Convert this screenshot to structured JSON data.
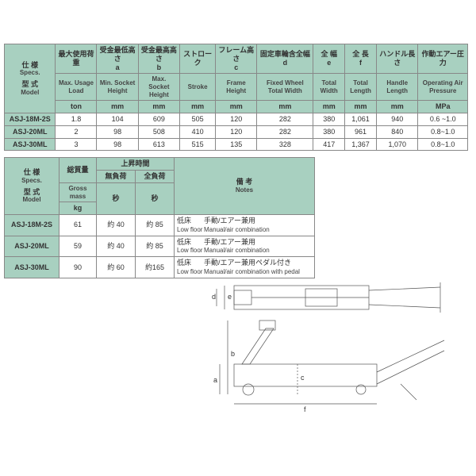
{
  "table1": {
    "corner_top": "仕 様",
    "corner_top_en": "Specs.",
    "corner_bottom": "型 式",
    "corner_bottom_en": "Model",
    "headers": [
      {
        "jp": "最大使用荷重",
        "en": "Max. Usage Load",
        "unit": "ton"
      },
      {
        "jp": "受金最低高さ",
        "letter": "a",
        "en": "Min. Socket Height",
        "unit": "mm"
      },
      {
        "jp": "受金最高高さ",
        "letter": "b",
        "en": "Max. Socket Height",
        "unit": "mm"
      },
      {
        "jp": "ストローク",
        "en": "Stroke",
        "unit": "mm"
      },
      {
        "jp": "フレーム高さ",
        "letter": "c",
        "en": "Frame Height",
        "unit": "mm"
      },
      {
        "jp": "固定車輪含全幅",
        "letter": "d",
        "en": "Fixed Wheel Total Width",
        "unit": "mm"
      },
      {
        "jp": "全 幅",
        "letter": "e",
        "en": "Total Width",
        "unit": "mm"
      },
      {
        "jp": "全 長",
        "letter": "f",
        "en": "Total Length",
        "unit": "mm"
      },
      {
        "jp": "ハンドル長さ",
        "en": "Handle Length",
        "unit": "mm"
      },
      {
        "jp": "作動エアー圧力",
        "en": "Operating Air Pressure",
        "unit": "MPa"
      }
    ],
    "rows": [
      {
        "model": "ASJ-18M-2S",
        "vals": [
          "1.8",
          "104",
          "609",
          "505",
          "120",
          "282",
          "380",
          "1,061",
          "940",
          "0.6 ~1.0"
        ]
      },
      {
        "model": "ASJ-20ML",
        "vals": [
          "2",
          "98",
          "508",
          "410",
          "120",
          "282",
          "380",
          "961",
          "840",
          "0.8~1.0"
        ]
      },
      {
        "model": "ASJ-30ML",
        "vals": [
          "3",
          "98",
          "613",
          "515",
          "135",
          "328",
          "417",
          "1,367",
          "1,070",
          "0.8~1.0"
        ]
      }
    ]
  },
  "table2": {
    "corner_top": "仕 様",
    "corner_top_en": "Specs.",
    "corner_bottom": "型 式",
    "corner_bottom_en": "Model",
    "mass_jp": "総質量",
    "mass_en": "Gross mass",
    "mass_unit": "kg",
    "lift_jp": "上昇時間",
    "noload_jp": "無負荷",
    "fullload_jp": "全負荷",
    "sec_unit": "秒",
    "notes_jp": "備 考",
    "notes_en": "Notes",
    "rows": [
      {
        "model": "ASJ-18M-2S",
        "mass": "61",
        "noload": "約 40",
        "full": "約 85",
        "note_jp": "低床",
        "note_en": "Low floor",
        "note2_jp": "手動/エアー兼用",
        "note2_en": "Manual/air combination"
      },
      {
        "model": "ASJ-20ML",
        "mass": "59",
        "noload": "約 40",
        "full": "約 85",
        "note_jp": "低床",
        "note_en": "Low floor",
        "note2_jp": "手動/エアー兼用",
        "note2_en": "Manual/air combination"
      },
      {
        "model": "ASJ-30ML",
        "mass": "90",
        "noload": "約 60",
        "full": "約165",
        "note_jp": "低床",
        "note_en": "Low floor",
        "note2_jp": "手動/エアー兼用ペダル付き",
        "note2_en": "Manual/air combination with pedal"
      }
    ]
  },
  "diagram_labels": {
    "a": "a",
    "b": "b",
    "c": "c",
    "d": "d",
    "e": "e",
    "f": "f"
  },
  "colors": {
    "header_bg": "#a8d0c0",
    "border": "#888888"
  }
}
